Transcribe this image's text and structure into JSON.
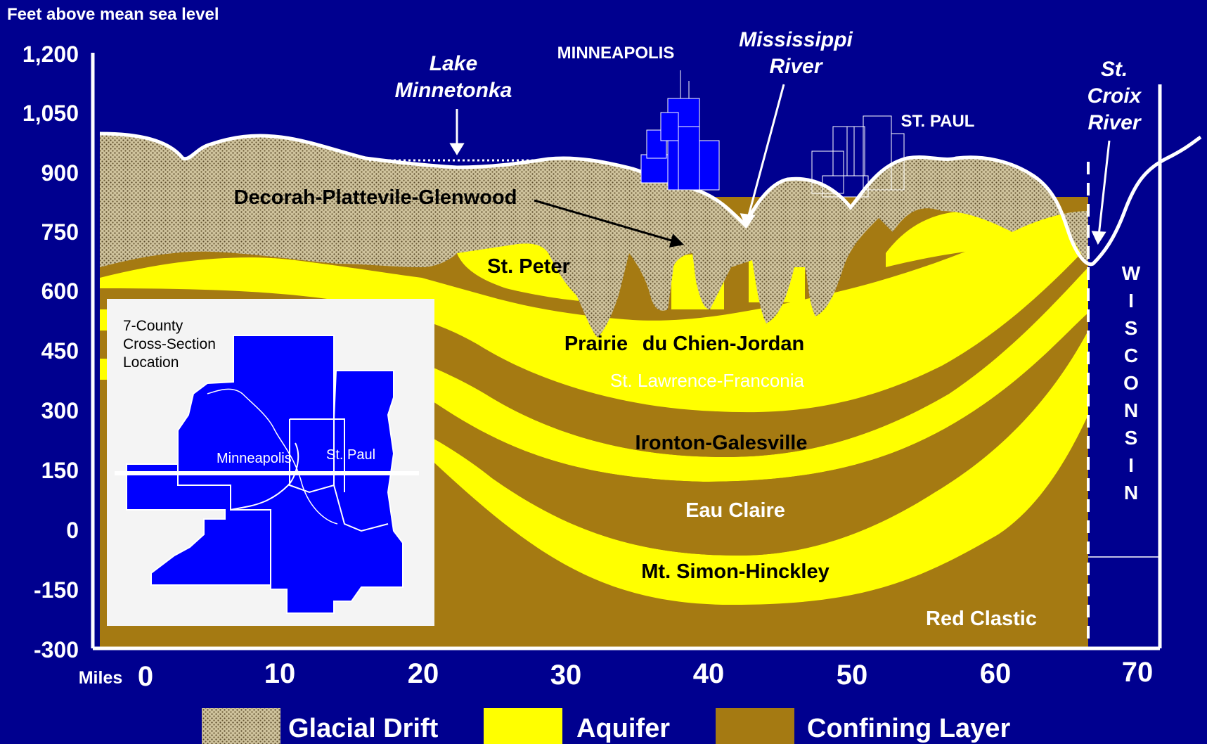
{
  "y_axis": {
    "title": "Feet above mean sea level",
    "ticks": [
      "1,200",
      "1,050",
      "900",
      "750",
      "600",
      "450",
      "300",
      "150",
      "0",
      "-150",
      "-300"
    ]
  },
  "x_axis": {
    "unit_label": "Miles",
    "ticks": [
      "0",
      "10",
      "20",
      "30",
      "40",
      "50",
      "60",
      "70"
    ]
  },
  "landmarks": {
    "lake": [
      "Lake",
      "Minnetonka"
    ],
    "minneapolis": "MINNEAPOLIS",
    "mississippi": [
      "Mississippi",
      "River"
    ],
    "st_paul": "ST. PAUL",
    "st_croix": [
      "St.",
      "Croix",
      "River"
    ],
    "wisconsin": [
      "W",
      "I",
      "S",
      "C",
      "O",
      "N",
      "S",
      "I",
      "N"
    ]
  },
  "layers": {
    "decorah": "Decorah-Plattevile-Glenwood",
    "st_peter": "St. Peter",
    "prairie_a": "Prairie",
    "prairie_b": "du Chien-Jordan",
    "st_lawrence": "St. Lawrence-Franconia",
    "ironton": "Ironton-Galesville",
    "eau_claire": "Eau Claire",
    "mt_simon": "Mt. Simon-Hinckley",
    "red_clastic": "Red Clastic"
  },
  "inset": {
    "title": [
      "7-County",
      "Cross-Section",
      "Location"
    ],
    "minneapolis": "Minneapolis",
    "st_paul": "St. Paul"
  },
  "legend": {
    "glacial_drift": "Glacial Drift",
    "aquifer": "Aquifer",
    "confining_layer": "Confining Layer"
  },
  "colors": {
    "background": "#00008f",
    "aquifer": "#ffff00",
    "confining": "#a57a12",
    "drift": "#cdbf98",
    "map_fill": "#0000ff"
  }
}
